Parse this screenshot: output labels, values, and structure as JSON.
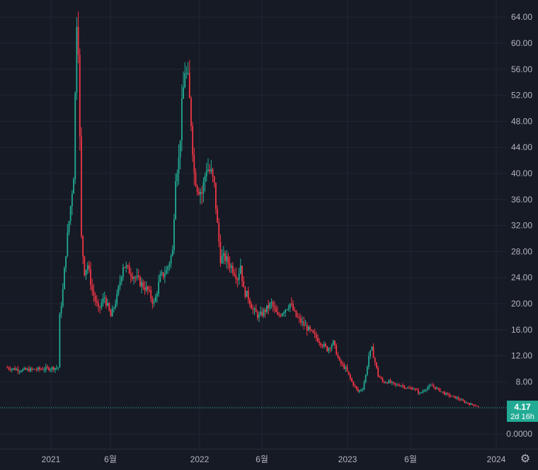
{
  "chart_data": {
    "type": "candlestick",
    "title": "",
    "xlabel": "",
    "ylabel": "",
    "ylim": [
      0,
      66
    ],
    "y_ticks": [
      "0.0000",
      "4.00",
      "8.00",
      "12.00",
      "16.00",
      "20.00",
      "24.00",
      "28.00",
      "32.00",
      "36.00",
      "40.00",
      "44.00",
      "48.00",
      "52.00",
      "56.00",
      "60.00",
      "64.00"
    ],
    "x_ticks": [
      "2021",
      "6월",
      "2022",
      "6월",
      "2023",
      "6월",
      "2024"
    ],
    "grid": true,
    "colors": {
      "up": "#22ab94",
      "down": "#f23645",
      "background": "#161a25",
      "grid": "#232632",
      "axis_text": "#b2b5be"
    },
    "last_price": "4.17",
    "countdown": "2d 16h",
    "price_points": [
      [
        0,
        10.2
      ],
      [
        10,
        9.8
      ],
      [
        20,
        9.9
      ],
      [
        30,
        10.1
      ],
      [
        34,
        10.2
      ],
      [
        35,
        18
      ],
      [
        37,
        22
      ],
      [
        39,
        28
      ],
      [
        42,
        35
      ],
      [
        44,
        40
      ],
      [
        45,
        52
      ],
      [
        46,
        64
      ],
      [
        47,
        60
      ],
      [
        49,
        30
      ],
      [
        51,
        25
      ],
      [
        53,
        26
      ],
      [
        56,
        22
      ],
      [
        60,
        19
      ],
      [
        64,
        21
      ],
      [
        68,
        18
      ],
      [
        72,
        21
      ],
      [
        76,
        26
      ],
      [
        80,
        25
      ],
      [
        84,
        24
      ],
      [
        88,
        23
      ],
      [
        92,
        22
      ],
      [
        96,
        20
      ],
      [
        100,
        24
      ],
      [
        104,
        25
      ],
      [
        108,
        28
      ],
      [
        110,
        40
      ],
      [
        112,
        42
      ],
      [
        114,
        50
      ],
      [
        116,
        56
      ],
      [
        118,
        54
      ],
      [
        120,
        48
      ],
      [
        122,
        40
      ],
      [
        124,
        38
      ],
      [
        127,
        37
      ],
      [
        130,
        41
      ],
      [
        133,
        40
      ],
      [
        135,
        38
      ],
      [
        137,
        32
      ],
      [
        139,
        27
      ],
      [
        142,
        27
      ],
      [
        145,
        26
      ],
      [
        148,
        25
      ],
      [
        150,
        24
      ],
      [
        152,
        26
      ],
      [
        154,
        22
      ],
      [
        157,
        21
      ],
      [
        160,
        19
      ],
      [
        164,
        18
      ],
      [
        168,
        19
      ],
      [
        172,
        20
      ],
      [
        176,
        18
      ],
      [
        180,
        19
      ],
      [
        184,
        20
      ],
      [
        188,
        18
      ],
      [
        192,
        17
      ],
      [
        196,
        16
      ],
      [
        200,
        15
      ],
      [
        204,
        14
      ],
      [
        208,
        13
      ],
      [
        212,
        14
      ],
      [
        216,
        11
      ],
      [
        220,
        10
      ],
      [
        224,
        8
      ],
      [
        228,
        6.5
      ],
      [
        231,
        7
      ],
      [
        233,
        9
      ],
      [
        235,
        12
      ],
      [
        237,
        13
      ],
      [
        239,
        11
      ],
      [
        241,
        9
      ],
      [
        244,
        8
      ],
      [
        248,
        8
      ],
      [
        252,
        7.5
      ],
      [
        256,
        7.5
      ],
      [
        260,
        7
      ],
      [
        264,
        7
      ],
      [
        268,
        6.2
      ],
      [
        272,
        7
      ],
      [
        276,
        7.4
      ],
      [
        280,
        6.8
      ],
      [
        284,
        6.2
      ],
      [
        288,
        5.8
      ],
      [
        292,
        5.5
      ],
      [
        296,
        5
      ],
      [
        300,
        4.6
      ],
      [
        304,
        4.4
      ],
      [
        306,
        4.17
      ]
    ]
  }
}
